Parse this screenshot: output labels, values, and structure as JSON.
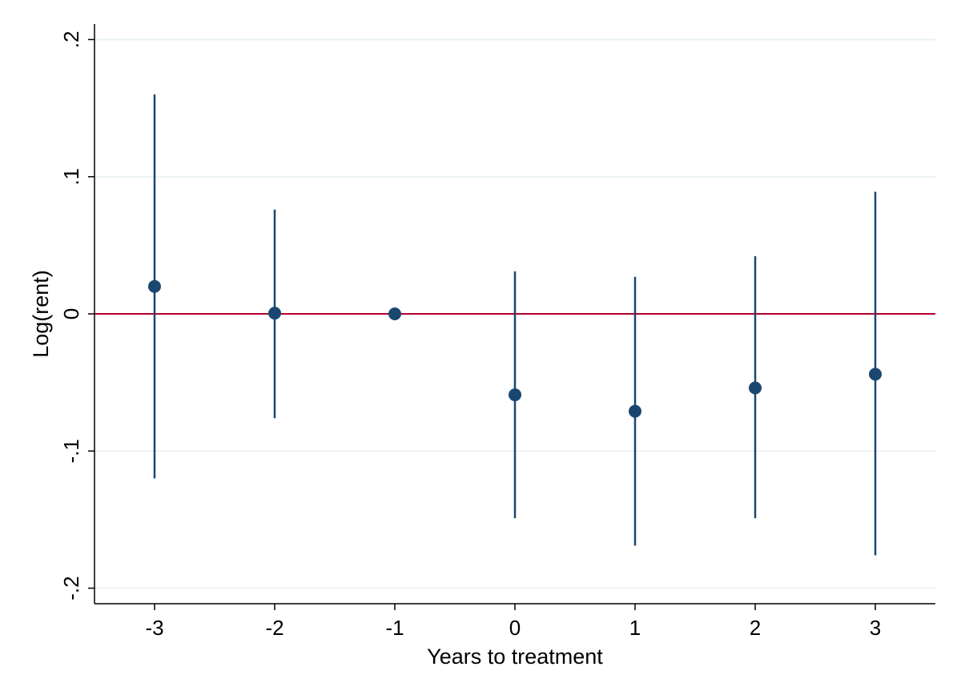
{
  "chart_data": {
    "type": "scatter",
    "title": "",
    "xlabel": "Years to treatment",
    "ylabel": "Log(rent)",
    "x_ticks": [
      "-3",
      "-2",
      "-1",
      "0",
      "1",
      "2",
      "3"
    ],
    "y_ticks": [
      ".2",
      ".1",
      "0",
      "-.1",
      "-.2"
    ],
    "xlim": [
      -3.5,
      3.5
    ],
    "ylim": [
      -0.211,
      0.2
    ],
    "grid": "horizontal",
    "reference_line_y": 0,
    "series": [
      {
        "type": "point-estimate-with-ci",
        "x": [
          -3,
          -2,
          -1,
          0,
          1,
          2,
          3
        ],
        "y": [
          0.02,
          0.0005,
          0,
          -0.059,
          -0.071,
          -0.054,
          -0.044
        ],
        "ci_lower": [
          -0.12,
          -0.076,
          0,
          -0.149,
          -0.169,
          -0.149,
          -0.176
        ],
        "ci_upper": [
          0.16,
          0.076,
          0,
          0.031,
          0.027,
          0.042,
          0.089
        ]
      }
    ],
    "colors": {
      "points": "#1a476f",
      "ci": "#1a476f",
      "reference_line": "#b5002c",
      "grid": "#eaf2f3",
      "axis": "#000000"
    }
  }
}
